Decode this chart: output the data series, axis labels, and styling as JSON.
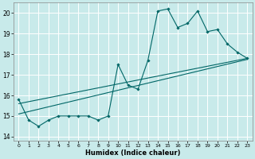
{
  "xlabel": "Humidex (Indice chaleur)",
  "bg_color": "#c8eaea",
  "grid_color": "#ffffff",
  "line_color": "#006666",
  "xlim": [
    -0.5,
    23.5
  ],
  "ylim": [
    13.8,
    20.5
  ],
  "x_ticks": [
    0,
    1,
    2,
    3,
    4,
    5,
    6,
    7,
    8,
    9,
    10,
    11,
    12,
    13,
    14,
    15,
    16,
    17,
    18,
    19,
    20,
    21,
    22,
    23
  ],
  "y_ticks": [
    14,
    15,
    16,
    17,
    18,
    19,
    20
  ],
  "main_line_x": [
    0,
    1,
    2,
    3,
    4,
    5,
    6,
    7,
    8,
    9,
    10,
    11,
    12,
    13,
    14,
    15,
    16,
    17,
    18,
    19,
    20,
    21,
    22,
    23
  ],
  "main_line_y": [
    15.8,
    14.8,
    14.5,
    14.8,
    15.0,
    15.0,
    15.0,
    15.0,
    14.8,
    15.0,
    17.5,
    16.5,
    16.3,
    17.7,
    20.1,
    20.2,
    19.3,
    19.5,
    20.1,
    19.1,
    19.2,
    18.5,
    18.1,
    17.8
  ],
  "trend1_x": [
    0,
    23
  ],
  "trend1_y": [
    15.1,
    17.75
  ],
  "trend2_x": [
    0,
    23
  ],
  "trend2_y": [
    15.6,
    17.8
  ]
}
